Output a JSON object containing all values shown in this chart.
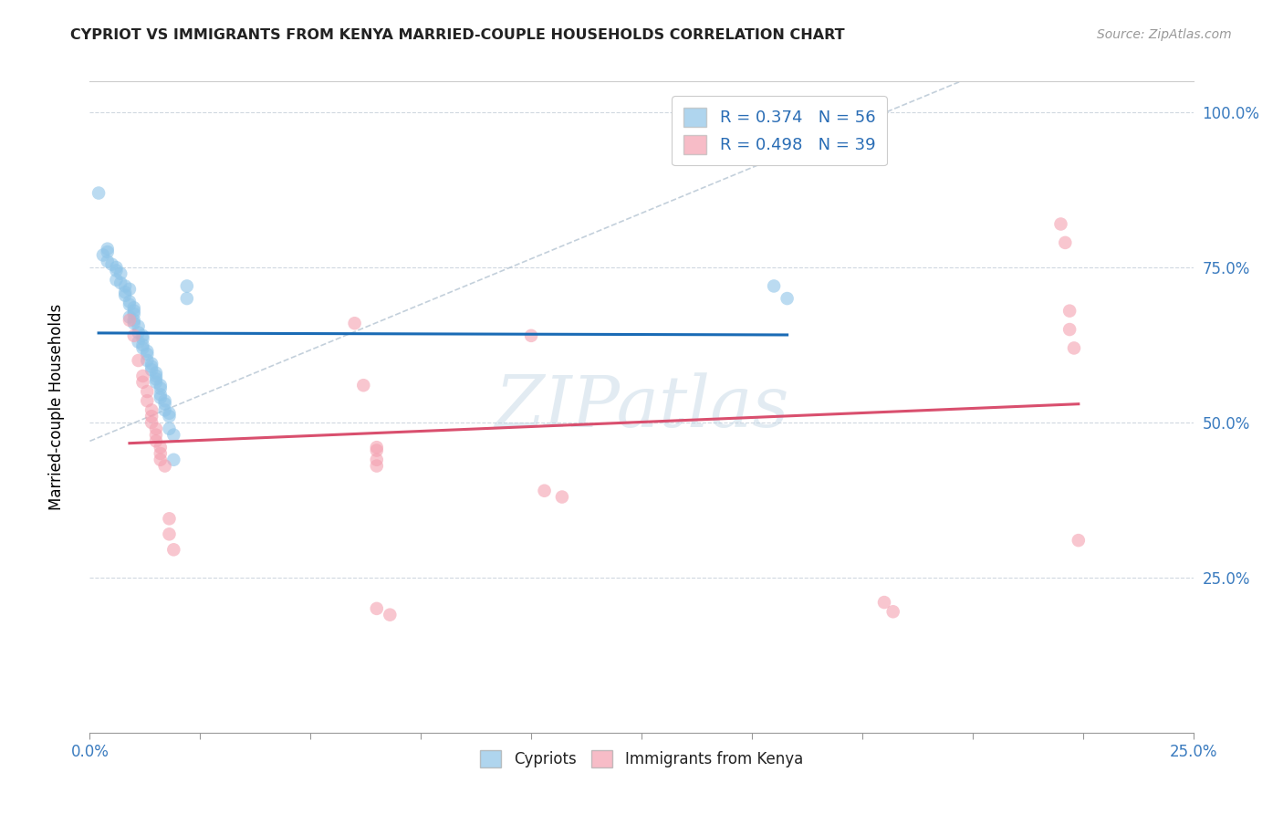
{
  "title": "CYPRIOT VS IMMIGRANTS FROM KENYA MARRIED-COUPLE HOUSEHOLDS CORRELATION CHART",
  "source": "Source: ZipAtlas.com",
  "ylabel_label": "Married-couple Households",
  "xmin": 0.0,
  "xmax": 0.25,
  "ymin": 0.0,
  "ymax": 1.05,
  "R_blue": 0.374,
  "N_blue": 56,
  "R_pink": 0.498,
  "N_pink": 39,
  "blue_color": "#8ec4e8",
  "pink_color": "#f4a0b0",
  "blue_line_color": "#1a6bb5",
  "pink_line_color": "#d94f6e",
  "dashed_line_color": "#aabccc",
  "blue_scatter": [
    [
      0.002,
      0.87
    ],
    [
      0.004,
      0.78
    ],
    [
      0.004,
      0.775
    ],
    [
      0.003,
      0.77
    ],
    [
      0.004,
      0.76
    ],
    [
      0.005,
      0.755
    ],
    [
      0.006,
      0.75
    ],
    [
      0.006,
      0.745
    ],
    [
      0.007,
      0.74
    ],
    [
      0.006,
      0.73
    ],
    [
      0.007,
      0.725
    ],
    [
      0.008,
      0.72
    ],
    [
      0.009,
      0.715
    ],
    [
      0.008,
      0.71
    ],
    [
      0.008,
      0.705
    ],
    [
      0.009,
      0.695
    ],
    [
      0.009,
      0.69
    ],
    [
      0.01,
      0.685
    ],
    [
      0.01,
      0.68
    ],
    [
      0.01,
      0.675
    ],
    [
      0.009,
      0.67
    ],
    [
      0.01,
      0.665
    ],
    [
      0.01,
      0.66
    ],
    [
      0.011,
      0.655
    ],
    [
      0.011,
      0.645
    ],
    [
      0.012,
      0.64
    ],
    [
      0.012,
      0.635
    ],
    [
      0.011,
      0.63
    ],
    [
      0.012,
      0.625
    ],
    [
      0.012,
      0.62
    ],
    [
      0.013,
      0.615
    ],
    [
      0.013,
      0.61
    ],
    [
      0.013,
      0.6
    ],
    [
      0.014,
      0.595
    ],
    [
      0.014,
      0.59
    ],
    [
      0.014,
      0.585
    ],
    [
      0.015,
      0.58
    ],
    [
      0.015,
      0.575
    ],
    [
      0.015,
      0.57
    ],
    [
      0.015,
      0.565
    ],
    [
      0.016,
      0.56
    ],
    [
      0.016,
      0.555
    ],
    [
      0.016,
      0.545
    ],
    [
      0.016,
      0.54
    ],
    [
      0.017,
      0.535
    ],
    [
      0.017,
      0.53
    ],
    [
      0.017,
      0.52
    ],
    [
      0.018,
      0.515
    ],
    [
      0.018,
      0.51
    ],
    [
      0.018,
      0.49
    ],
    [
      0.019,
      0.48
    ],
    [
      0.019,
      0.44
    ],
    [
      0.022,
      0.72
    ],
    [
      0.022,
      0.7
    ],
    [
      0.155,
      0.72
    ],
    [
      0.158,
      0.7
    ]
  ],
  "pink_scatter": [
    [
      0.009,
      0.665
    ],
    [
      0.01,
      0.64
    ],
    [
      0.011,
      0.6
    ],
    [
      0.012,
      0.575
    ],
    [
      0.012,
      0.565
    ],
    [
      0.013,
      0.55
    ],
    [
      0.013,
      0.535
    ],
    [
      0.014,
      0.52
    ],
    [
      0.014,
      0.51
    ],
    [
      0.014,
      0.5
    ],
    [
      0.015,
      0.49
    ],
    [
      0.015,
      0.48
    ],
    [
      0.015,
      0.47
    ],
    [
      0.016,
      0.46
    ],
    [
      0.016,
      0.45
    ],
    [
      0.016,
      0.44
    ],
    [
      0.017,
      0.43
    ],
    [
      0.018,
      0.345
    ],
    [
      0.018,
      0.32
    ],
    [
      0.019,
      0.295
    ],
    [
      0.06,
      0.66
    ],
    [
      0.062,
      0.56
    ],
    [
      0.065,
      0.46
    ],
    [
      0.065,
      0.455
    ],
    [
      0.065,
      0.44
    ],
    [
      0.065,
      0.43
    ],
    [
      0.065,
      0.2
    ],
    [
      0.068,
      0.19
    ],
    [
      0.1,
      0.64
    ],
    [
      0.103,
      0.39
    ],
    [
      0.107,
      0.38
    ],
    [
      0.18,
      0.21
    ],
    [
      0.182,
      0.195
    ],
    [
      0.22,
      0.82
    ],
    [
      0.221,
      0.79
    ],
    [
      0.222,
      0.68
    ],
    [
      0.222,
      0.65
    ],
    [
      0.223,
      0.62
    ],
    [
      0.224,
      0.31
    ]
  ],
  "watermark": "ZIPatlas",
  "legend_labels": [
    "Cypriots",
    "Immigrants from Kenya"
  ]
}
